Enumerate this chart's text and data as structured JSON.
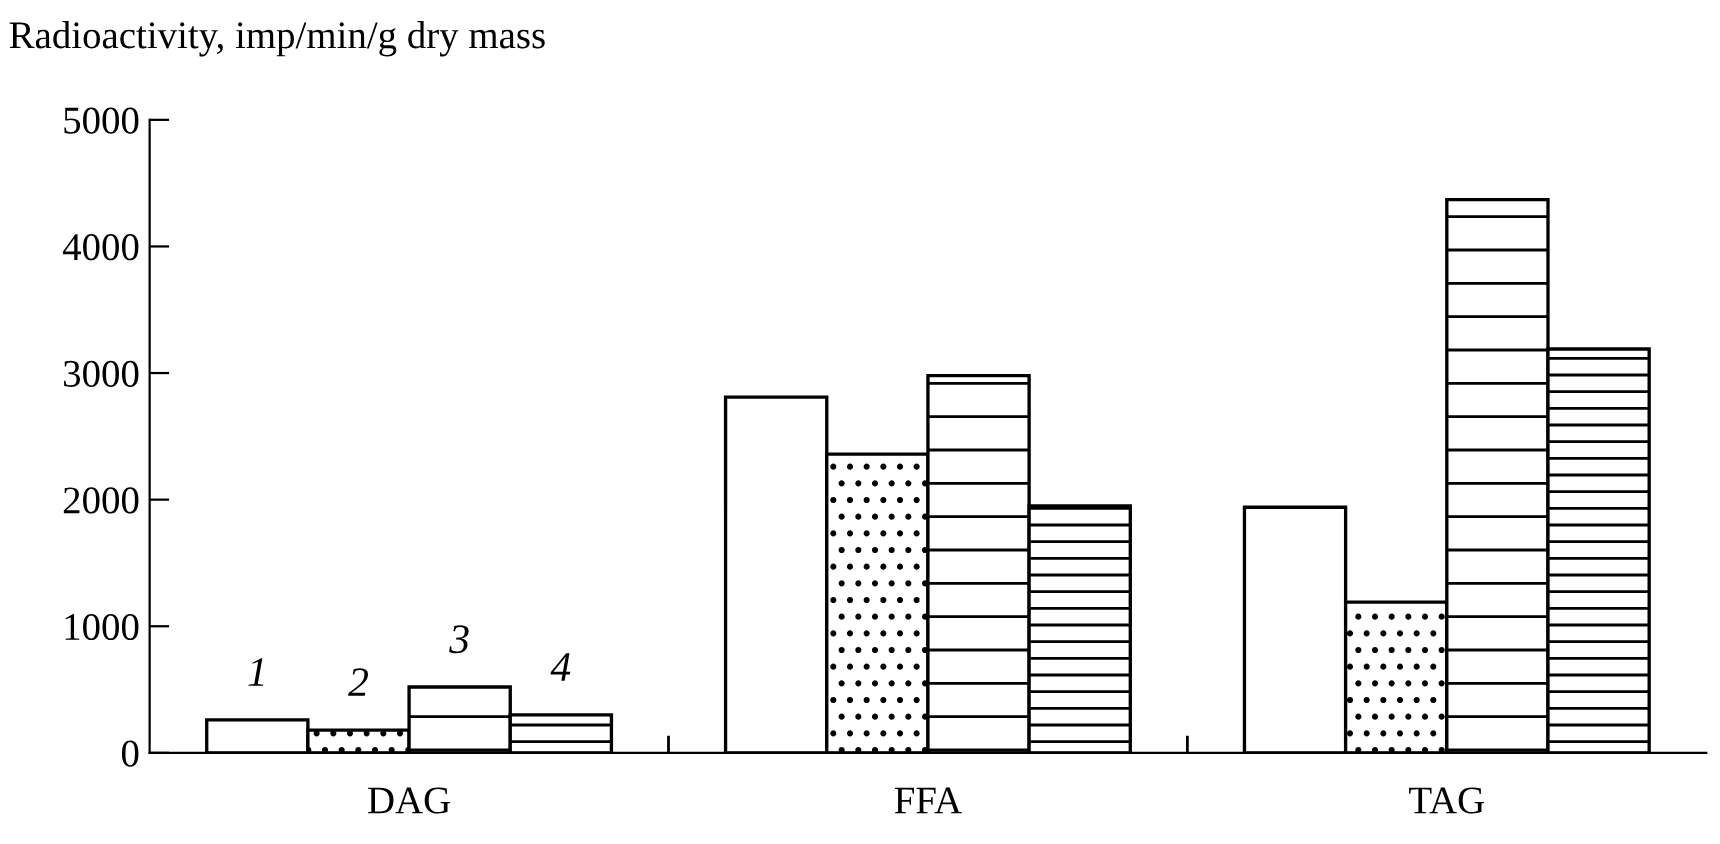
{
  "chart_data": {
    "type": "bar",
    "ylabel": "Radioactivity, imp/min/g dry mass",
    "categories": [
      "DAG",
      "FFA",
      "TAG"
    ],
    "series": [
      {
        "name": "1",
        "color": "#ffffff",
        "values": [
          260,
          2810,
          1940
        ]
      },
      {
        "name": "2",
        "color": "#000000",
        "values": [
          180,
          2360,
          1190
        ]
      },
      {
        "name": "3",
        "color": "#000000",
        "values": [
          520,
          2980,
          4370
        ]
      },
      {
        "name": "4",
        "color": "#000000",
        "values": [
          300,
          1950,
          3190
        ]
      }
    ],
    "ylim": [
      0,
      5000
    ],
    "yticks": [
      0,
      1000,
      2000,
      3000,
      4000,
      5000
    ],
    "grid": false,
    "legend": false
  }
}
